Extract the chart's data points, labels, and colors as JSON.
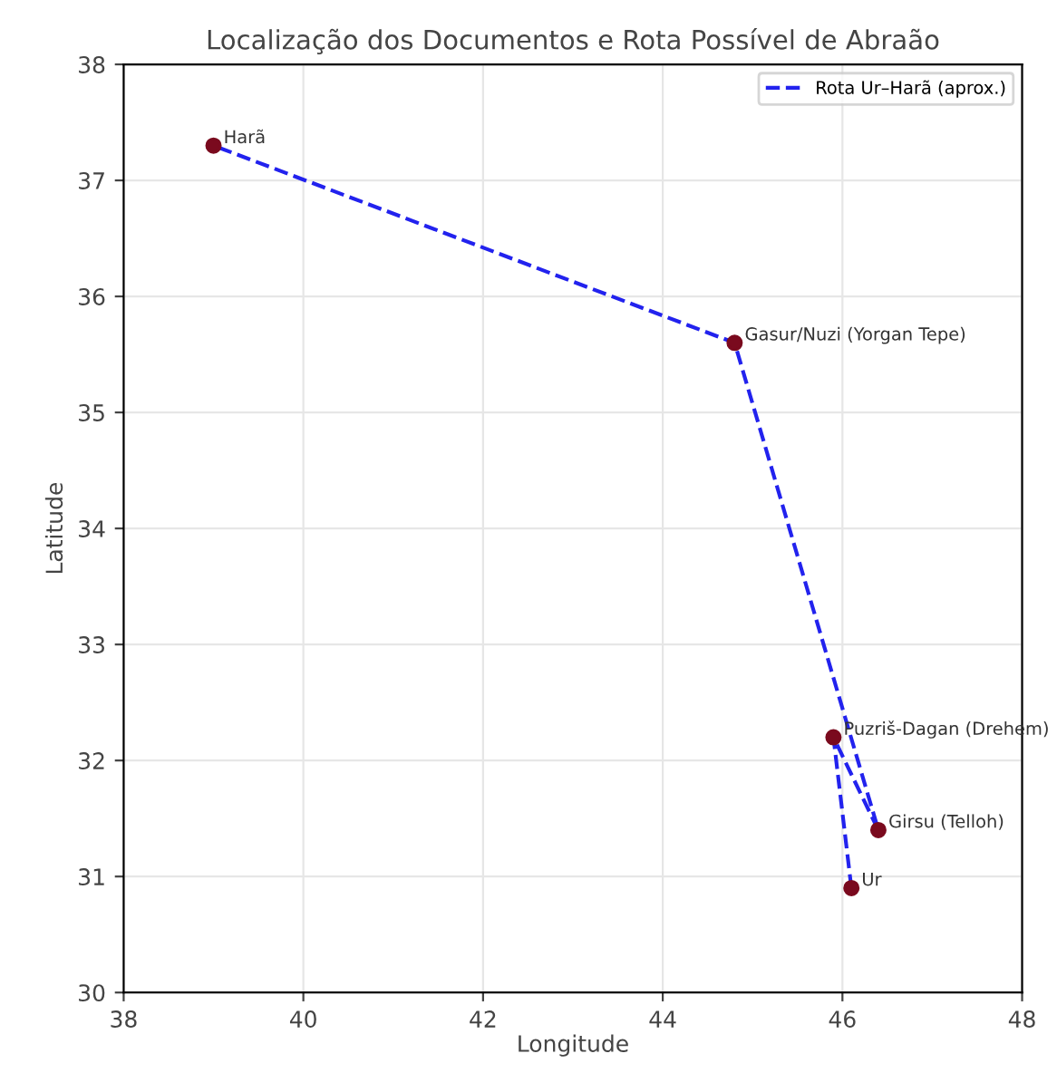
{
  "chart_data": {
    "type": "scatter",
    "title": "Localização dos Documentos e Rota Possível de Abraão",
    "xlabel": "Longitude",
    "ylabel": "Latitude",
    "series": [
      {
        "color": "#7a0a1e",
        "x": [
          39.0,
          44.8,
          45.9,
          46.4,
          46.1
        ],
        "values": [
          37.3,
          35.6,
          32.2,
          31.4,
          30.9
        ],
        "marker": "circle"
      },
      {
        "type": "line",
        "name": "Rota Ur–Harã (aprox.)",
        "color": "#2222ee",
        "x": [
          46.1,
          45.9,
          46.4,
          44.8,
          39.0
        ],
        "values": [
          30.9,
          32.2,
          31.4,
          35.6,
          37.3
        ],
        "line_style": "dashed",
        "marker": "none"
      }
    ],
    "annotations": [
      {
        "text": "Harã",
        "x": 39.0,
        "y": 37.3
      },
      {
        "text": "Gasur/Nuzi (Yorgan Tepe)",
        "x": 44.8,
        "y": 35.6
      },
      {
        "text": "Puzriš-Dagan (Drehem)",
        "x": 45.9,
        "y": 32.2
      },
      {
        "text": "Girsu (Telloh)",
        "x": 46.4,
        "y": 31.4
      },
      {
        "text": "Ur",
        "x": 46.1,
        "y": 30.9
      }
    ],
    "xlim": [
      38,
      48
    ],
    "xticks": [
      38,
      40,
      42,
      44,
      46,
      48
    ],
    "ylim": [
      30,
      38
    ],
    "yticks": [
      30,
      31,
      32,
      33,
      34,
      35,
      36,
      37,
      38
    ],
    "grid": true,
    "legend": "top right"
  }
}
